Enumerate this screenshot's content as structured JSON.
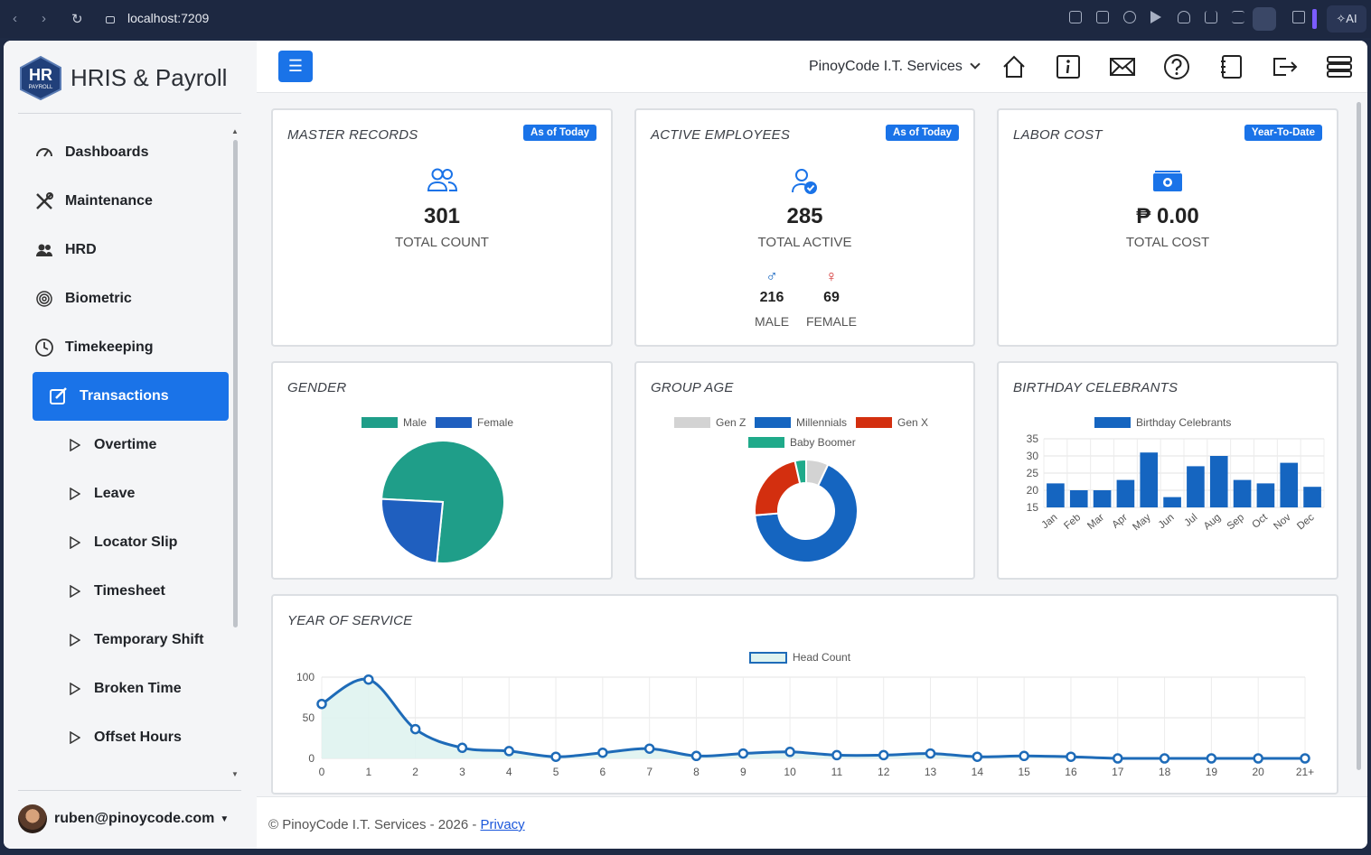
{
  "browser": {
    "url": "localhost:7209",
    "ai_label": "AI"
  },
  "sidebar": {
    "brand_title": "HRIS & Payroll",
    "logo": {
      "line1": "HR",
      "line2": "PAYROLL"
    },
    "items": [
      {
        "label": "Dashboards",
        "icon": "speedometer-icon"
      },
      {
        "label": "Maintenance",
        "icon": "tools-icon"
      },
      {
        "label": "HRD",
        "icon": "people-icon"
      },
      {
        "label": "Biometric",
        "icon": "fingerprint-icon"
      },
      {
        "label": "Timekeeping",
        "icon": "clock-icon"
      },
      {
        "label": "Transactions",
        "icon": "edit-icon",
        "active": true
      },
      {
        "label": "Overtime",
        "icon": "triangle-right-icon"
      },
      {
        "label": "Leave",
        "icon": "triangle-right-icon"
      },
      {
        "label": "Locator Slip",
        "icon": "triangle-right-icon"
      },
      {
        "label": "Timesheet",
        "icon": "triangle-right-icon"
      },
      {
        "label": "Temporary Shift",
        "icon": "triangle-right-icon"
      },
      {
        "label": "Broken Time",
        "icon": "triangle-right-icon"
      },
      {
        "label": "Offset Hours",
        "icon": "triangle-right-icon"
      }
    ],
    "user_email": "ruben@pinoycode.com"
  },
  "header": {
    "company": "PinoyCode I.T. Services",
    "icons": [
      "home-icon",
      "info-icon",
      "mail-icon",
      "help-icon",
      "notebook-icon",
      "logout-icon",
      "server-icon"
    ]
  },
  "cards": {
    "master_records": {
      "title": "MASTER RECORDS",
      "badge": "As of Today",
      "value": "301",
      "caption": "TOTAL COUNT"
    },
    "active_employees": {
      "title": "ACTIVE EMPLOYEES",
      "badge": "As of Today",
      "value": "285",
      "caption": "TOTAL ACTIVE",
      "male_symbol": "♂",
      "female_symbol": "♀",
      "male_value": "216",
      "male_label": "MALE",
      "female_value": "69",
      "female_label": "FEMALE"
    },
    "labor_cost": {
      "title": "LABOR COST",
      "badge": "Year-To-Date",
      "value": "₱ 0.00",
      "caption": "TOTAL COST"
    },
    "gender": {
      "title": "GENDER"
    },
    "group_age": {
      "title": "GROUP AGE"
    },
    "birthday": {
      "title": "BIRTHDAY CELEBRANTS"
    },
    "year_of_service": {
      "title": "YEAR OF SERVICE"
    }
  },
  "footer": {
    "text": "© PinoyCode I.T. Services - 2026 - ",
    "privacy": "Privacy"
  },
  "colors": {
    "primary": "#1a73e8",
    "male": "#1f9e89",
    "female": "#1f5fbf",
    "gen_z": "#d3d3d3",
    "millennials": "#1565c0",
    "gen_x": "#d32f0f",
    "baby_boomer": "#1faa8a",
    "bar": "#1565c0",
    "line": "#1e6bb8"
  },
  "chart_data": [
    {
      "type": "pie",
      "title": "",
      "categories": [
        "Male",
        "Female"
      ],
      "values": [
        216,
        69
      ],
      "legend": "top"
    },
    {
      "type": "pie",
      "title": "",
      "donut": true,
      "categories": [
        "Gen Z",
        "Millennials",
        "Gen X",
        "Baby Boomer"
      ],
      "values": [
        20,
        190,
        65,
        10
      ],
      "legend": "top"
    },
    {
      "type": "bar",
      "title": "",
      "series": [
        {
          "name": "Birthday Celebrants",
          "values": [
            22,
            20,
            20,
            23,
            31,
            18,
            27,
            30,
            23,
            22,
            28,
            21
          ]
        }
      ],
      "categories": [
        "Jan",
        "Feb",
        "Mar",
        "Apr",
        "May",
        "Jun",
        "Jul",
        "Aug",
        "Sep",
        "Oct",
        "Nov",
        "Dec"
      ],
      "ylim": [
        15,
        35
      ],
      "yticks": [
        15,
        20,
        25,
        30,
        35
      ],
      "grid": true,
      "legend": "top"
    },
    {
      "type": "area",
      "title": "",
      "series": [
        {
          "name": "Head Count",
          "values": [
            67,
            97,
            36,
            13,
            9,
            2,
            7,
            12,
            3,
            6,
            8,
            4,
            4,
            6,
            2,
            3,
            2,
            0,
            0,
            0,
            0,
            0
          ]
        }
      ],
      "categories": [
        "0",
        "1",
        "2",
        "3",
        "4",
        "5",
        "6",
        "7",
        "8",
        "9",
        "10",
        "11",
        "12",
        "13",
        "14",
        "15",
        "16",
        "17",
        "18",
        "19",
        "20",
        "21+"
      ],
      "ylim": [
        0,
        100
      ],
      "yticks": [
        0,
        50,
        100
      ],
      "grid": true,
      "legend": "top"
    }
  ]
}
